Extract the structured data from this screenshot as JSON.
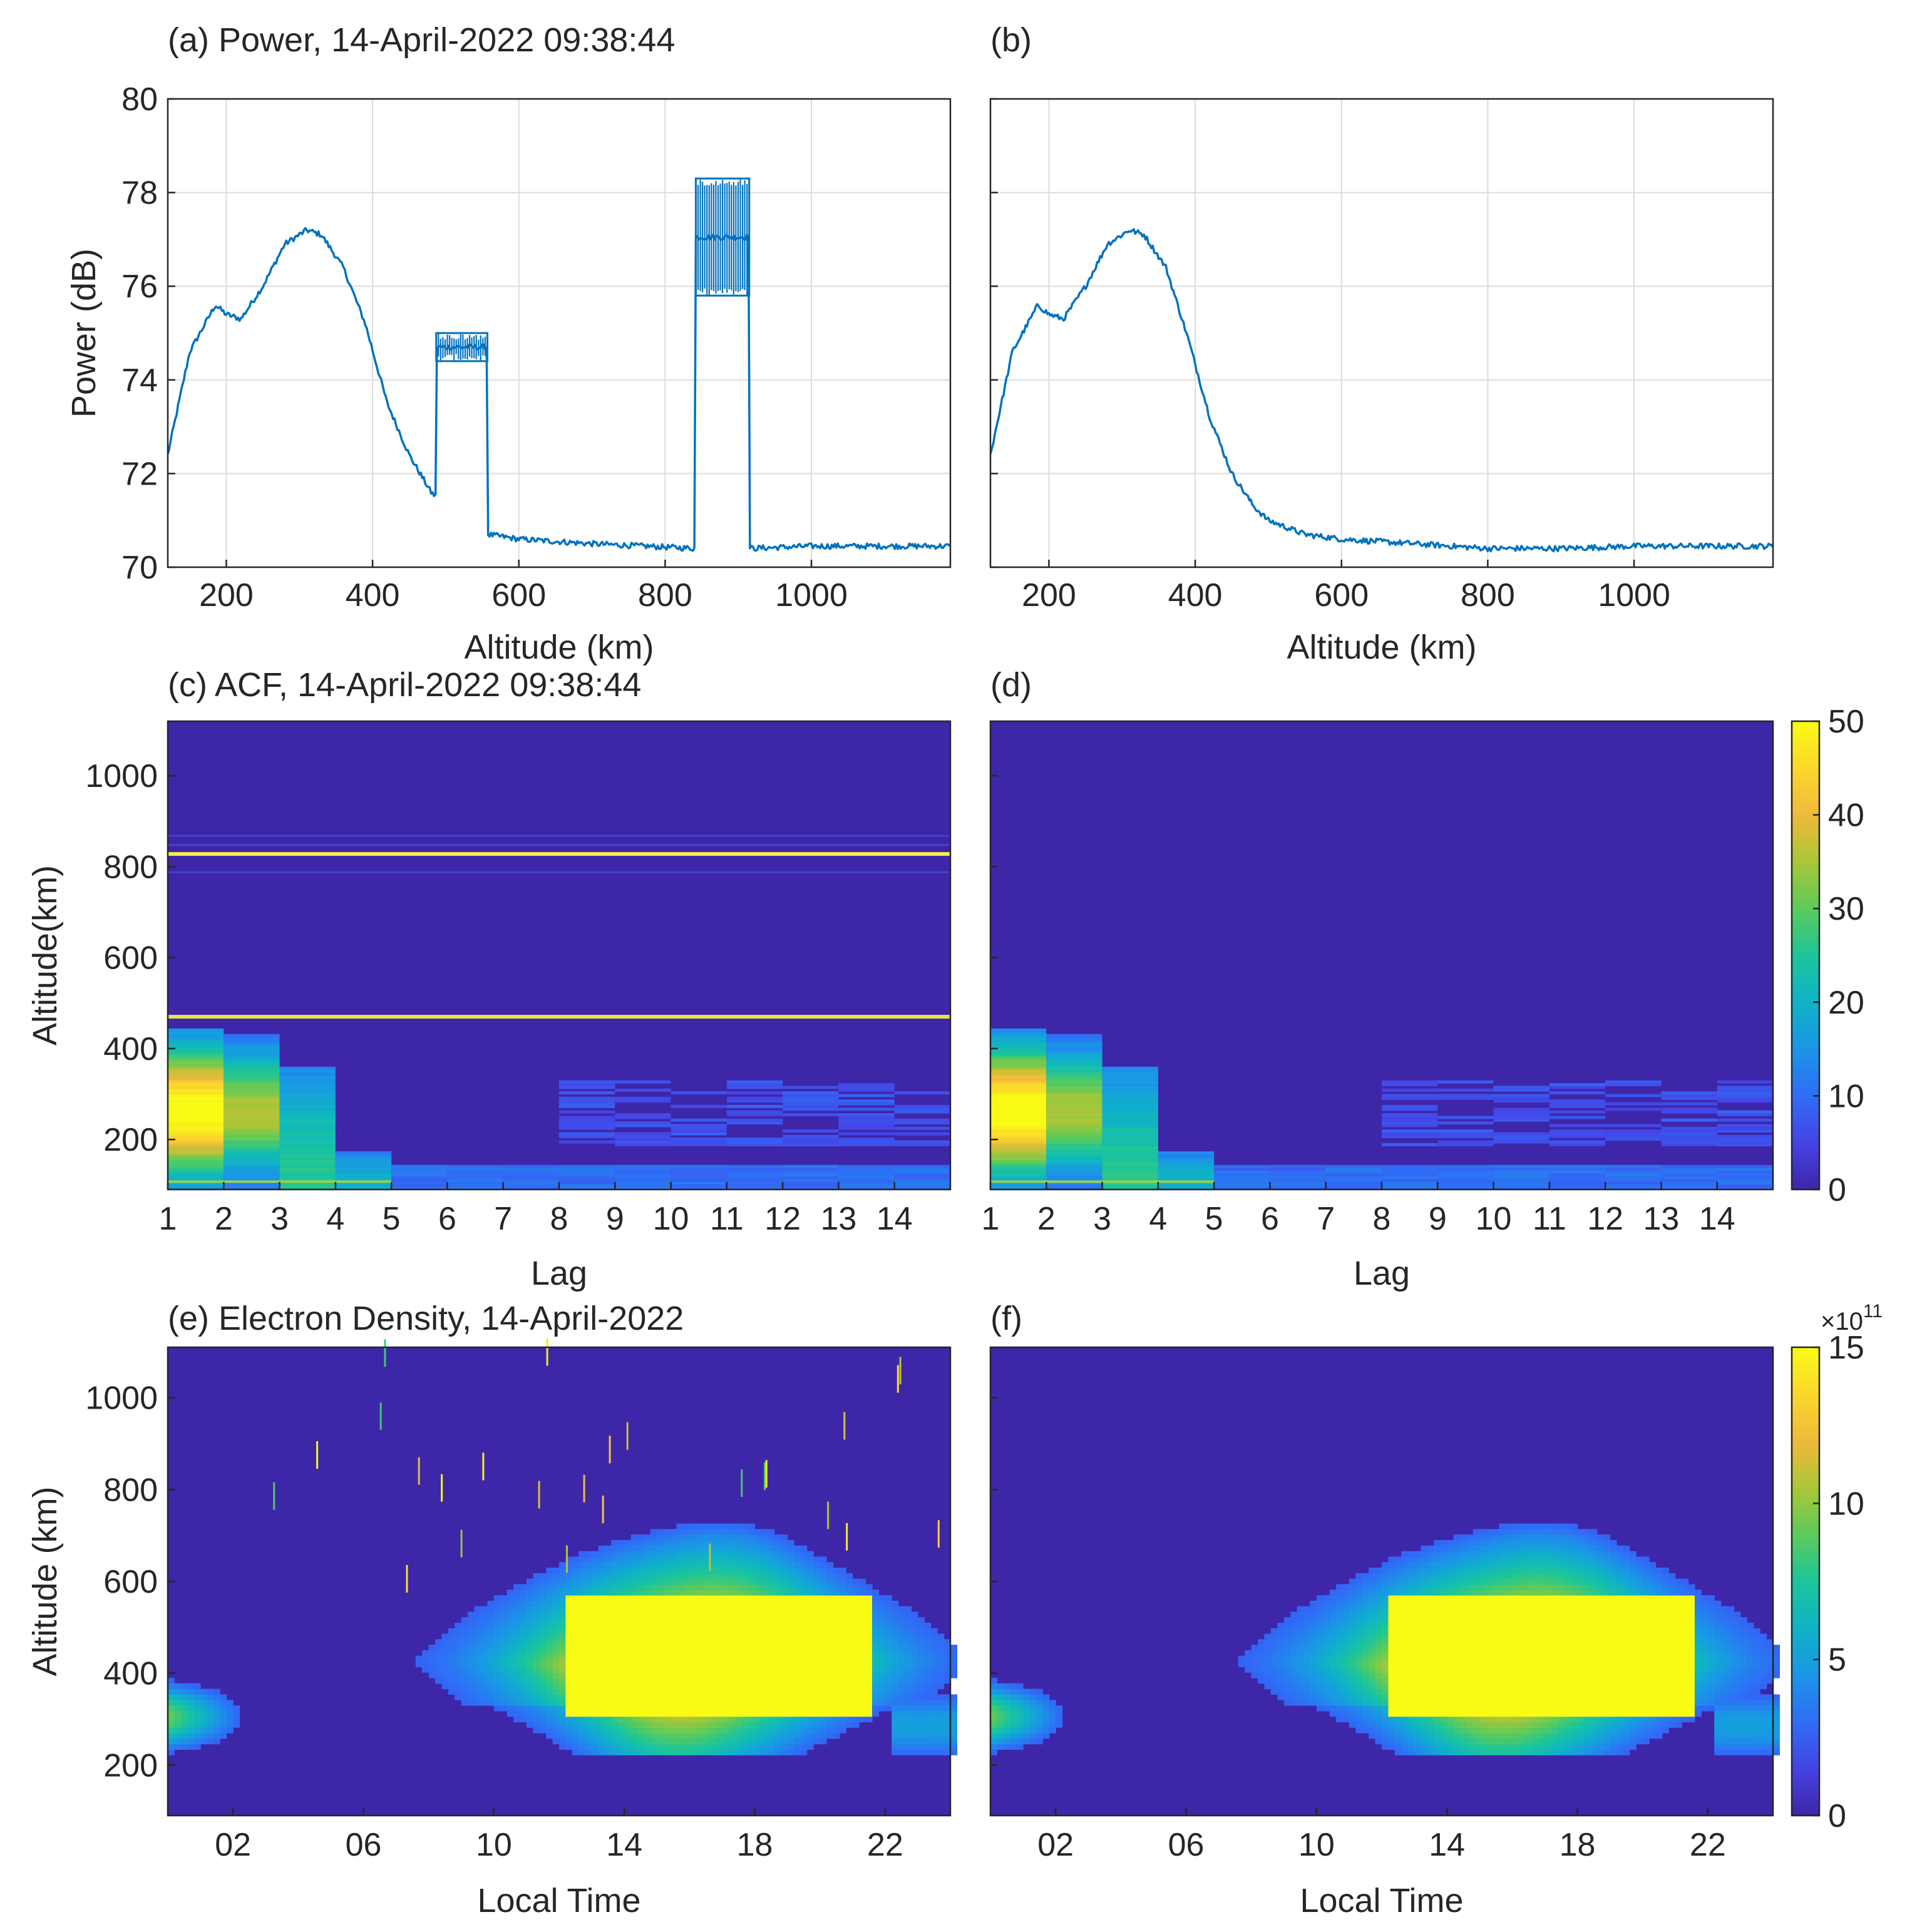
{
  "figure": {
    "colormap": [
      "#3e26a8",
      "#4543e6",
      "#2f6df6",
      "#1a95e7",
      "#0fb3c6",
      "#1cc59a",
      "#5ccb5a",
      "#abc637",
      "#efba3a",
      "#fbd72c",
      "#f9fb15"
    ]
  },
  "chart_data": [
    {
      "id": "a",
      "type": "line",
      "title": "(a) Power, 14-April-2022 09:38:44",
      "xlabel": "Altitude (km)",
      "ylabel": "Power (dB)",
      "xlim": [
        120,
        1190
      ],
      "ylim": [
        70,
        80
      ],
      "xticks": [
        200,
        400,
        600,
        800,
        1000
      ],
      "yticks": [
        70,
        72,
        74,
        76,
        78,
        80
      ],
      "grid": true,
      "line_color": "#0072bd",
      "profile": {
        "altitude_km": [
          120,
          150,
          185,
          200,
          220,
          250,
          280,
          310,
          330,
          360,
          390,
          420,
          450,
          480,
          487
        ],
        "power_db": [
          72.4,
          74.6,
          75.6,
          75.4,
          75.3,
          76.0,
          76.9,
          77.2,
          77.1,
          76.4,
          75.2,
          73.5,
          72.4,
          71.6,
          71.5
        ]
      },
      "blocks": [
        {
          "x_start_km": 487,
          "x_end_km": 557,
          "low_db": 74.4,
          "high_db": 75.0
        },
        {
          "x_start_km": 842,
          "x_end_km": 915,
          "low_db": 75.8,
          "high_db": 78.3
        }
      ],
      "baseline": {
        "altitude_km": [
          557,
          600,
          700,
          842,
          915,
          1000,
          1190
        ],
        "power_db": [
          70.7,
          70.6,
          70.5,
          70.4,
          70.4,
          70.45,
          70.45
        ]
      }
    },
    {
      "id": "b",
      "type": "line",
      "title": "(b)",
      "xlabel": "Altitude (km)",
      "ylabel": "",
      "xlim": [
        120,
        1190
      ],
      "ylim": [
        70,
        80
      ],
      "xticks": [
        200,
        400,
        600,
        800,
        1000
      ],
      "yticks": [
        70,
        72,
        74,
        76,
        78,
        80
      ],
      "grid": true,
      "line_color": "#0072bd",
      "profile": {
        "altitude_km": [
          120,
          150,
          185,
          200,
          220,
          250,
          280,
          310,
          330,
          360,
          390,
          420,
          450,
          480,
          500,
          550,
          600,
          700,
          800,
          900,
          1000,
          1100,
          1190
        ],
        "power_db": [
          72.4,
          74.6,
          75.6,
          75.4,
          75.3,
          76.0,
          76.9,
          77.2,
          77.1,
          76.4,
          74.9,
          73.2,
          72.0,
          71.3,
          71.0,
          70.7,
          70.6,
          70.5,
          70.4,
          70.4,
          70.45,
          70.45,
          70.45
        ]
      }
    },
    {
      "id": "c",
      "type": "heatmap",
      "title": "(c) ACF, 14-April-2022 09:38:44",
      "xlabel": "Lag",
      "ylabel": "Altitude(km)",
      "xlim": [
        1,
        15
      ],
      "ylim": [
        90,
        1120
      ],
      "xticks": [
        1,
        2,
        3,
        4,
        5,
        6,
        7,
        8,
        9,
        10,
        11,
        12,
        13,
        14
      ],
      "yticks": [
        200,
        400,
        600,
        800,
        1000
      ],
      "interference_lines_km": [
        470,
        828
      ],
      "profile_values_by_lag": [
        {
          "lag": 1,
          "peak_value": 46,
          "top_km": 440
        },
        {
          "lag": 2,
          "peak_value": 30,
          "top_km": 430
        },
        {
          "lag": 3,
          "peak_value": 20,
          "top_km": 360
        },
        {
          "lag": 4,
          "peak_value": 14,
          "top_km": 170
        }
      ]
    },
    {
      "id": "d",
      "type": "heatmap",
      "title": "(d)",
      "xlabel": "Lag",
      "ylabel": "",
      "xlim": [
        1,
        15
      ],
      "ylim": [
        90,
        1120
      ],
      "xticks": [
        1,
        2,
        3,
        4,
        5,
        6,
        7,
        8,
        9,
        10,
        11,
        12,
        13,
        14
      ],
      "yticks": [
        200,
        400,
        600,
        800,
        1000
      ],
      "colorbar": {
        "range": [
          0,
          50
        ],
        "ticks": [
          0,
          10,
          20,
          30,
          40,
          50
        ]
      }
    },
    {
      "id": "e",
      "type": "heatmap",
      "title": "(e) Electron Density, 14-April-2022",
      "xlabel": "Local Time",
      "ylabel": "Altitude (km)",
      "xlim": [
        0,
        24
      ],
      "ylim": [
        90,
        1110
      ],
      "xtick_values": [
        2,
        6,
        10,
        14,
        18,
        22
      ],
      "xtick_labels": [
        "02",
        "06",
        "10",
        "14",
        "18",
        "22"
      ],
      "yticks": [
        200,
        400,
        600,
        800,
        1000
      ],
      "peak_layer": {
        "max_time": 16,
        "max_altitude_km": 400,
        "saturated_from": 12,
        "saturated_to": 21.5
      }
    },
    {
      "id": "f",
      "type": "heatmap",
      "title": "(f)",
      "xlabel": "Local Time",
      "ylabel": "",
      "xlim": [
        0,
        24
      ],
      "ylim": [
        90,
        1110
      ],
      "xtick_values": [
        2,
        6,
        10,
        14,
        18,
        22
      ],
      "xtick_labels": [
        "02",
        "06",
        "10",
        "14",
        "18",
        "22"
      ],
      "yticks": [
        200,
        400,
        600,
        800,
        1000
      ],
      "colorbar": {
        "range": [
          0,
          15
        ],
        "ticks": [
          0,
          5,
          10,
          15
        ],
        "multiplier_base": "×10",
        "multiplier_exponent": "11"
      }
    }
  ]
}
